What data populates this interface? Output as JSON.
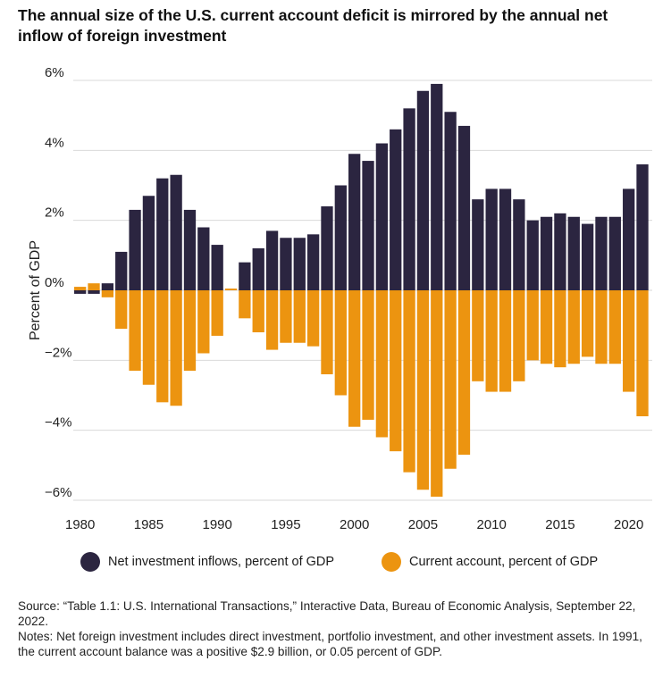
{
  "title": "The annual size of the U.S. current account deficit is mirrored by the annual net inflow of foreign investment",
  "colors": {
    "inflows": "#2b2540",
    "current_account": "#ec9410",
    "grid": "#d9d9d9"
  },
  "legend": {
    "inflows_label": "Net investment inflows, percent of GDP",
    "current_account_label": "Current account, percent of GDP"
  },
  "source": "Source: “Table 1.1: U.S. International Transactions,” Interactive Data, Bureau of Economic Analysis, September 22, 2022.",
  "notes": "Notes: Net foreign investment includes direct investment, portfolio investment, and other investment assets. In 1991, the current account balance was a positive $2.9 billion, or 0.05 percent of GDP.",
  "chart_data": {
    "type": "bar",
    "title": "The annual size of the U.S. current account deficit is mirrored by the annual net inflow of foreign investment",
    "ylabel": "Percent of GDP",
    "xlabel": "",
    "ylim": [
      -6,
      6
    ],
    "yticks": [
      6,
      4,
      2,
      0,
      -2,
      -4,
      -6
    ],
    "ytick_labels": [
      "6%",
      "4%",
      "2%",
      "0%",
      "−2%",
      "−4%",
      "−6%"
    ],
    "xticks": [
      1980,
      1985,
      1990,
      1995,
      2000,
      2005,
      2010,
      2015,
      2020
    ],
    "xtick_labels": [
      "1980",
      "1985",
      "1990",
      "1995",
      "2000",
      "2005",
      "2010",
      "2015",
      "2020"
    ],
    "grid": true,
    "legend_position": "bottom",
    "x": [
      1980,
      1981,
      1982,
      1983,
      1984,
      1985,
      1986,
      1987,
      1988,
      1989,
      1990,
      1991,
      1992,
      1993,
      1994,
      1995,
      1996,
      1997,
      1998,
      1999,
      2000,
      2001,
      2002,
      2003,
      2004,
      2005,
      2006,
      2007,
      2008,
      2009,
      2010,
      2011,
      2012,
      2013,
      2014,
      2015,
      2016,
      2017,
      2018,
      2019,
      2020,
      2021
    ],
    "series": [
      {
        "name": "Net investment inflows, percent of GDP",
        "values": [
          -0.1,
          -0.1,
          0.2,
          1.1,
          2.3,
          2.7,
          3.2,
          3.3,
          2.3,
          1.8,
          1.3,
          0.0,
          0.8,
          1.2,
          1.7,
          1.5,
          1.5,
          1.6,
          2.4,
          3.0,
          3.9,
          3.7,
          4.2,
          4.6,
          5.2,
          5.7,
          5.9,
          5.1,
          4.7,
          2.6,
          2.9,
          2.9,
          2.6,
          2.0,
          2.1,
          2.2,
          2.1,
          1.9,
          2.1,
          2.1,
          2.9,
          3.6
        ]
      },
      {
        "name": "Current account, percent of GDP",
        "values": [
          0.1,
          0.2,
          -0.2,
          -1.1,
          -2.3,
          -2.7,
          -3.2,
          -3.3,
          -2.3,
          -1.8,
          -1.3,
          0.05,
          -0.8,
          -1.2,
          -1.7,
          -1.5,
          -1.5,
          -1.6,
          -2.4,
          -3.0,
          -3.9,
          -3.7,
          -4.2,
          -4.6,
          -5.2,
          -5.7,
          -5.9,
          -5.1,
          -4.7,
          -2.6,
          -2.9,
          -2.9,
          -2.6,
          -2.0,
          -2.1,
          -2.2,
          -2.1,
          -1.9,
          -2.1,
          -2.1,
          -2.9,
          -3.6
        ]
      }
    ]
  }
}
